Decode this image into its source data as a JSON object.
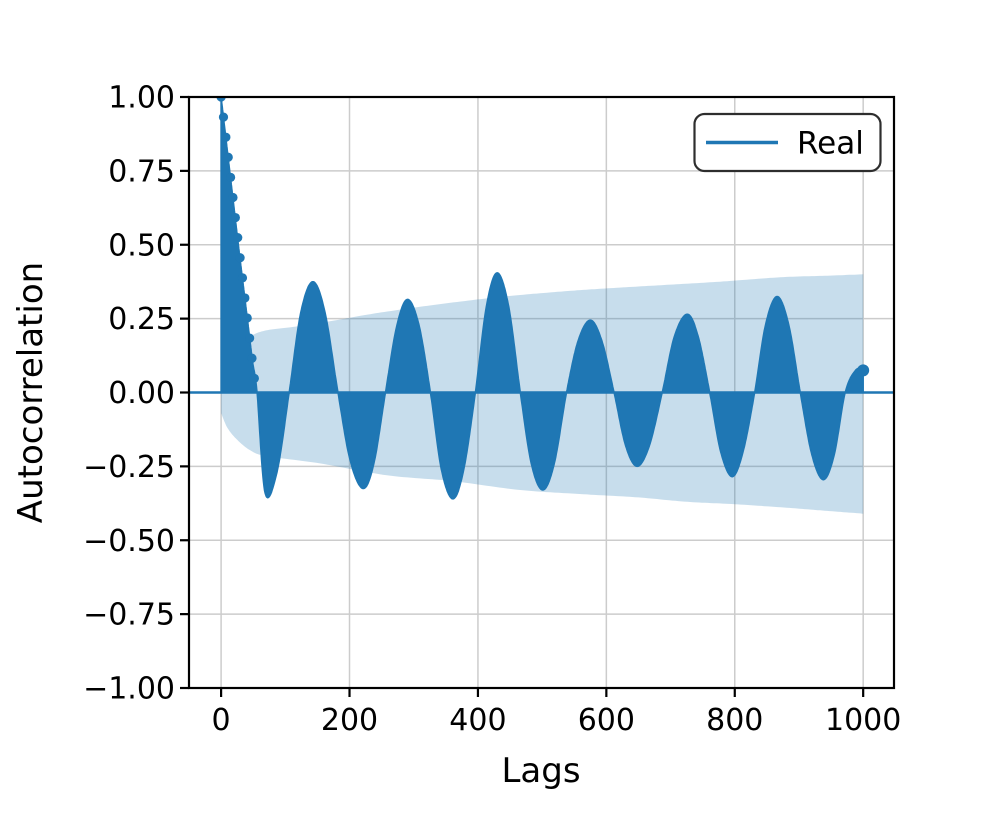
{
  "chart_data": {
    "type": "line",
    "subtype": "autocorrelation-stem",
    "title": "",
    "xlabel": "Lags",
    "ylabel": "Autocorrelation",
    "xlim": [
      -50,
      1048
    ],
    "ylim": [
      -1.0,
      1.0
    ],
    "grid": true,
    "xticks": [
      0,
      200,
      400,
      600,
      800,
      1000
    ],
    "xtick_labels": [
      "0",
      "200",
      "400",
      "600",
      "800",
      "1000"
    ],
    "ytick_values": [
      1.0,
      0.75,
      0.5,
      0.25,
      0.0,
      -0.25,
      -0.5,
      -0.75,
      -1.0
    ],
    "ytick_labels": [
      "1.00",
      "0.75",
      "0.50",
      "0.25",
      "0.00",
      "−0.25",
      "−0.50",
      "−0.75",
      "−1.00"
    ],
    "legend": {
      "position": "upper right",
      "entries": [
        {
          "label": "Real",
          "color": "#1f77b4",
          "style": "line"
        }
      ]
    },
    "zero_line": {
      "value": 0.0,
      "color": "#1f77b4"
    },
    "series": [
      {
        "name": "Real",
        "render": "stem-fill",
        "color": "#1f77b4",
        "keypoints": [
          [
            0,
            1.0
          ],
          [
            7,
            0.87
          ],
          [
            14,
            0.74
          ],
          [
            21,
            0.61
          ],
          [
            28,
            0.48
          ],
          [
            35,
            0.355
          ],
          [
            42,
            0.23
          ],
          [
            49,
            0.105
          ],
          [
            56,
            0.0
          ],
          [
            68.5,
            -0.34
          ],
          [
            87,
            -0.27
          ],
          [
            106,
            0.0
          ],
          [
            124,
            0.27
          ],
          [
            143,
            0.375
          ],
          [
            162,
            0.27
          ],
          [
            182,
            0.0
          ],
          [
            201,
            -0.23
          ],
          [
            221,
            -0.325
          ],
          [
            238,
            -0.24
          ],
          [
            256,
            0.0
          ],
          [
            273,
            0.22
          ],
          [
            290,
            0.315
          ],
          [
            308,
            0.23
          ],
          [
            326,
            0.0
          ],
          [
            343,
            -0.26
          ],
          [
            361,
            -0.36
          ],
          [
            378,
            -0.26
          ],
          [
            396,
            0.0
          ],
          [
            413,
            0.29
          ],
          [
            430,
            0.405
          ],
          [
            448,
            0.29
          ],
          [
            466,
            0.0
          ],
          [
            483,
            -0.24
          ],
          [
            501,
            -0.33
          ],
          [
            519,
            -0.24
          ],
          [
            538,
            0.0
          ],
          [
            556,
            0.175
          ],
          [
            575,
            0.245
          ],
          [
            593,
            0.175
          ],
          [
            612,
            0.0
          ],
          [
            630,
            -0.18
          ],
          [
            648,
            -0.25
          ],
          [
            667,
            -0.18
          ],
          [
            687,
            0.0
          ],
          [
            706,
            0.19
          ],
          [
            726,
            0.265
          ],
          [
            743,
            0.19
          ],
          [
            761,
            0.0
          ],
          [
            778,
            -0.2
          ],
          [
            796,
            -0.285
          ],
          [
            813,
            -0.2
          ],
          [
            831,
            0.0
          ],
          [
            848,
            0.23
          ],
          [
            866,
            0.325
          ],
          [
            884,
            0.23
          ],
          [
            902,
            0.0
          ],
          [
            920,
            -0.21
          ],
          [
            938,
            -0.295
          ],
          [
            955,
            -0.21
          ],
          [
            972,
            0.0
          ],
          [
            988,
            0.075
          ],
          [
            1000,
            0.08
          ]
        ],
        "extrema": {
          "peaks": [
            [
              143,
              0.375
            ],
            [
              290,
              0.315
            ],
            [
              430,
              0.405
            ],
            [
              575,
              0.245
            ],
            [
              726,
              0.265
            ],
            [
              866,
              0.325
            ],
            [
              1000,
              0.08
            ]
          ],
          "dips": [
            [
              68.5,
              -0.34
            ],
            [
              221,
              -0.325
            ],
            [
              361,
              -0.36
            ],
            [
              501,
              -0.33
            ],
            [
              648,
              -0.25
            ],
            [
              796,
              -0.285
            ],
            [
              938,
              -0.295
            ]
          ]
        }
      }
    ],
    "confidence_band": {
      "color": "rgba(31,119,180,0.25)",
      "upper": [
        [
          0,
          0.07
        ],
        [
          10,
          0.12
        ],
        [
          25,
          0.16
        ],
        [
          45,
          0.19
        ],
        [
          70,
          0.21
        ],
        [
          123,
          0.225
        ],
        [
          180,
          0.245
        ],
        [
          232,
          0.265
        ],
        [
          310,
          0.29
        ],
        [
          400,
          0.315
        ],
        [
          466,
          0.33
        ],
        [
          550,
          0.345
        ],
        [
          621,
          0.355
        ],
        [
          700,
          0.365
        ],
        [
          777,
          0.375
        ],
        [
          871,
          0.39
        ],
        [
          940,
          0.395
        ],
        [
          1000,
          0.4
        ]
      ],
      "lower": [
        [
          0,
          -0.07
        ],
        [
          10,
          -0.12
        ],
        [
          25,
          -0.16
        ],
        [
          45,
          -0.195
        ],
        [
          70,
          -0.215
        ],
        [
          154,
          -0.24
        ],
        [
          258,
          -0.28
        ],
        [
          361,
          -0.3
        ],
        [
          466,
          -0.33
        ],
        [
          570,
          -0.345
        ],
        [
          650,
          -0.355
        ],
        [
          726,
          -0.37
        ],
        [
          800,
          -0.378
        ],
        [
          881,
          -0.39
        ],
        [
          940,
          -0.4
        ],
        [
          1000,
          -0.41
        ]
      ]
    },
    "colors": {
      "series": "#1f77b4",
      "band": "rgba(31,119,180,0.25)",
      "grid": "#cccccc",
      "spine": "#000000",
      "background": "#ffffff",
      "legend_edge": "#2e2e2e"
    }
  }
}
